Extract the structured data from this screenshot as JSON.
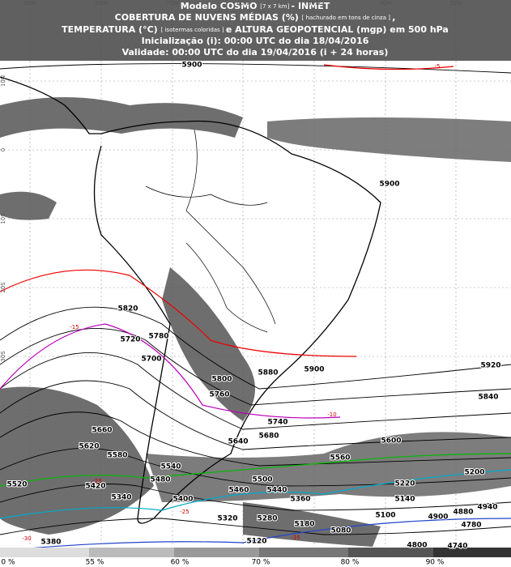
{
  "header": {
    "lines": [
      [
        "Modelo COSMO",
        "[7 x 7 km]",
        "- INMET"
      ],
      [
        "COBERTURA DE NUVENS MÉDIAS (%)",
        "[ hachurado em tons de cinza ]",
        ","
      ],
      [
        "TEMPERATURA (°C)",
        "[ isotermas coloridas ]",
        "e ALTURA GEOPOTENCIAL (mgp) em 500 hPa"
      ],
      [
        "Inicialização (i): 00:00 UTC do dia 18/04/2016"
      ],
      [
        "Validade: 00:00 UTC do dia 19/04/2016 (i + 24 horas)"
      ]
    ]
  },
  "grid": {
    "longitudes": [
      "90W",
      "80W",
      "70W",
      "60W",
      "50W",
      "40W",
      "30W"
    ],
    "latitudes": [
      "10N",
      "0",
      "10S",
      "20S",
      "30S"
    ]
  },
  "contour_labels": [
    "5900",
    "5900",
    "5820",
    "5780",
    "5720",
    "5700",
    "5800",
    "5760",
    "5880",
    "5900",
    "5920",
    "5840",
    "5740",
    "5680",
    "5640",
    "5660",
    "5620",
    "5600",
    "5580",
    "5540",
    "5560",
    "5520",
    "5480",
    "5420",
    "5500",
    "5460",
    "5440",
    "5340",
    "5400",
    "5360",
    "5220",
    "5200",
    "5140",
    "5100",
    "5320",
    "5280",
    "5180",
    "5080",
    "4900",
    "4880",
    "4940",
    "4780",
    "5120",
    "5380",
    "4800",
    "4740"
  ],
  "isotherm_labels": [
    "-5",
    "-10",
    "-15",
    "-20",
    "-25",
    "-30",
    "-35"
  ],
  "legend": {
    "labels": [
      "0 %",
      "55 %",
      "60 %",
      "70 %",
      "80 %",
      "90 %"
    ]
  }
}
